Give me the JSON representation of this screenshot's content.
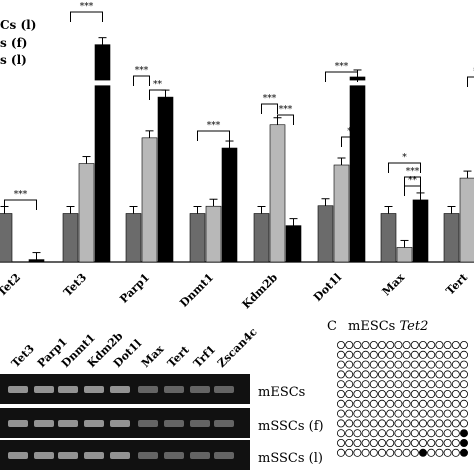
{
  "chart_data": {
    "type": "bar",
    "title": "",
    "xlabel": "",
    "ylabel": "",
    "legend": {
      "placement": "top-left",
      "entries": [
        "Cs (l)",
        "s (f)",
        "s (l)"
      ]
    },
    "categories": [
      "Tet2",
      "Tet3",
      "Parp1",
      "Dnmt1",
      "Kdm2b",
      "Dot1l",
      "Max",
      "Tert",
      ""
    ],
    "series": [
      {
        "name": "Cs (l)",
        "color": "#6b6b6b",
        "values": [
          1.0,
          1.0,
          1.0,
          1.0,
          1.0,
          1.16,
          1.0,
          1.0,
          1.0
        ]
      },
      {
        "name": "s (f)",
        "color": "#b8b8b8",
        "values": [
          null,
          2.03,
          2.56,
          1.15,
          2.83,
          2.0,
          0.3,
          1.73,
          null
        ]
      },
      {
        "name": "s (l)",
        "color": "#000000",
        "values": [
          0.05,
          5.5,
          3.4,
          2.35,
          0.75,
          4.02,
          1.28,
          null,
          null
        ]
      }
    ],
    "significance": [
      {
        "category": "Tet2",
        "marks": [
          "***"
        ]
      },
      {
        "category": "Tet3",
        "marks": [
          "***"
        ]
      },
      {
        "category": "Parp1",
        "marks": [
          "***",
          "**"
        ]
      },
      {
        "category": "Dnmt1",
        "marks": [
          "***"
        ]
      },
      {
        "category": "Kdm2b",
        "marks": [
          "***",
          "***"
        ]
      },
      {
        "category": "Dot1l",
        "marks": [
          "***",
          "*"
        ]
      },
      {
        "category": "Max",
        "marks": [
          "*",
          "**",
          "***"
        ]
      },
      {
        "category": "Tert",
        "marks": [
          "*"
        ]
      }
    ],
    "axis_break": "between 3.6 and 4.0 (bars break visually)",
    "grid": false
  },
  "gel_panel": {
    "lanes": [
      "Tet3",
      "Parp1",
      "Dnmt1",
      "Kdm2b",
      "Dot1l",
      "Max",
      "Tert",
      "Trf1",
      "Zscan4c"
    ],
    "rows": [
      "mESCs",
      "mSSCs (f)",
      "mSSCs (l)"
    ]
  },
  "panel_c": {
    "letter": "C",
    "title_prefix": "mESCs ",
    "title_gene": "Tet2"
  }
}
